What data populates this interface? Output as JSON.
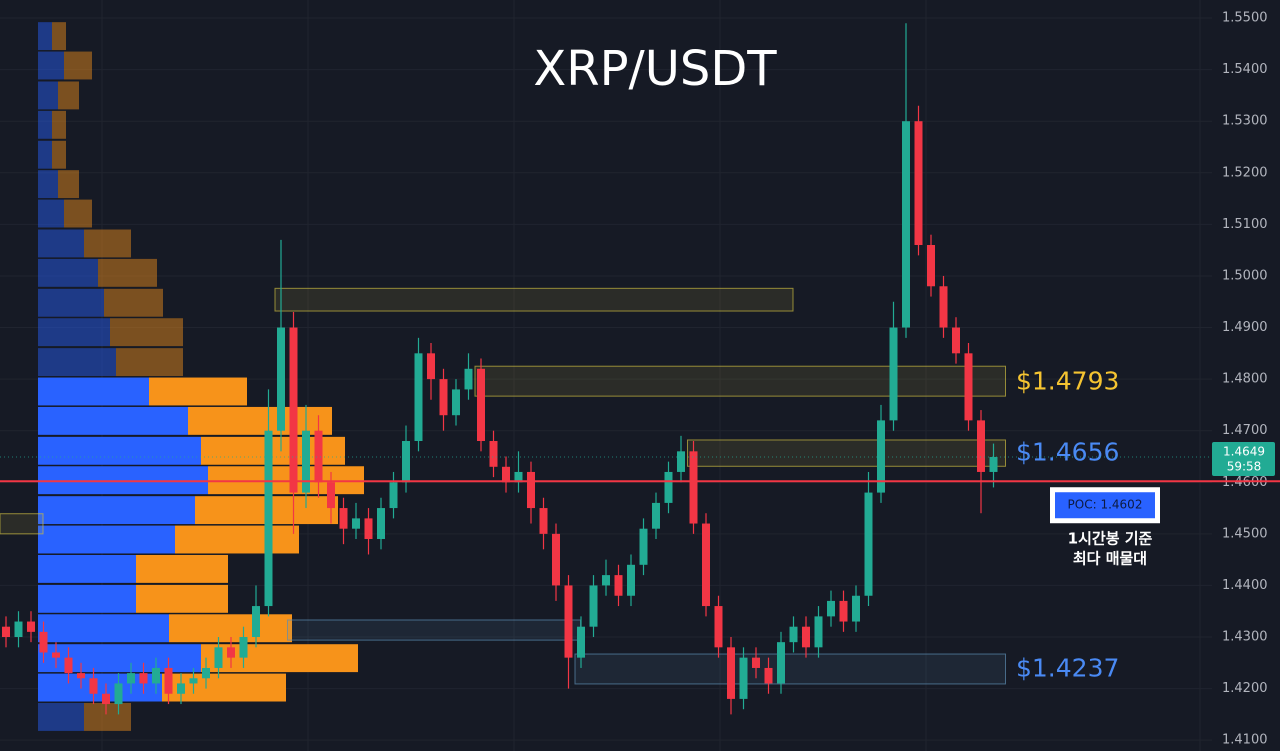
{
  "chart_data": {
    "type": "candlestick",
    "title": "XRP/USDT",
    "up_color": "#22ab94",
    "down_color": "#f23645",
    "grid": true,
    "ylim": [
      1.4079,
      1.5535
    ],
    "yticks": [
      {
        "value": 1.41,
        "label": "1.4100"
      },
      {
        "value": 1.42,
        "label": "1.4200"
      },
      {
        "value": 1.43,
        "label": "1.4300"
      },
      {
        "value": 1.44,
        "label": "1.4400"
      },
      {
        "value": 1.45,
        "label": "1.4500"
      },
      {
        "value": 1.46,
        "label": "1.4600"
      },
      {
        "value": 1.47,
        "label": "1.4700"
      },
      {
        "value": 1.48,
        "label": "1.4800"
      },
      {
        "value": 1.49,
        "label": "1.4900"
      },
      {
        "value": 1.5,
        "label": "1.5000"
      },
      {
        "value": 1.51,
        "label": "1.5100"
      },
      {
        "value": 1.52,
        "label": "1.5200"
      },
      {
        "value": 1.53,
        "label": "1.5300"
      },
      {
        "value": 1.54,
        "label": "1.5400"
      },
      {
        "value": 1.55,
        "label": "1.5500"
      }
    ],
    "open": [
      1.432,
      1.43,
      1.433,
      1.431,
      1.427,
      1.426,
      1.423,
      1.422,
      1.419,
      1.417,
      1.421,
      1.423,
      1.421,
      1.424,
      1.419,
      1.421,
      1.422,
      1.424,
      1.428,
      1.426,
      1.43,
      1.436,
      1.47,
      1.49,
      1.458,
      1.47,
      1.46,
      1.455,
      1.451,
      1.453,
      1.449,
      1.455,
      1.46,
      1.468,
      1.485,
      1.48,
      1.473,
      1.478,
      1.482,
      1.468,
      1.463,
      1.46,
      1.462,
      1.455,
      1.45,
      1.44,
      1.426,
      1.432,
      1.44,
      1.442,
      1.438,
      1.444,
      1.451,
      1.456,
      1.462,
      1.466,
      1.452,
      1.436,
      1.428,
      1.418,
      1.426,
      1.424,
      1.421,
      1.429,
      1.432,
      1.428,
      1.434,
      1.437,
      1.433,
      1.438,
      1.458,
      1.472,
      1.49,
      1.53,
      1.506,
      1.498,
      1.49,
      1.485,
      1.472,
      1.462
    ],
    "high": [
      1.434,
      1.435,
      1.435,
      1.433,
      1.429,
      1.428,
      1.425,
      1.424,
      1.421,
      1.423,
      1.425,
      1.425,
      1.426,
      1.426,
      1.423,
      1.424,
      1.426,
      1.43,
      1.43,
      1.432,
      1.44,
      1.478,
      1.507,
      1.493,
      1.475,
      1.473,
      1.462,
      1.457,
      1.456,
      1.455,
      1.457,
      1.462,
      1.471,
      1.488,
      1.487,
      1.482,
      1.48,
      1.485,
      1.484,
      1.47,
      1.465,
      1.466,
      1.464,
      1.457,
      1.452,
      1.442,
      1.434,
      1.442,
      1.445,
      1.444,
      1.446,
      1.453,
      1.458,
      1.464,
      1.469,
      1.468,
      1.454,
      1.438,
      1.43,
      1.428,
      1.428,
      1.426,
      1.431,
      1.434,
      1.434,
      1.436,
      1.439,
      1.439,
      1.44,
      1.462,
      1.475,
      1.495,
      1.549,
      1.533,
      1.508,
      1.5,
      1.492,
      1.487,
      1.474,
      1.4675
    ],
    "low": [
      1.428,
      1.428,
      1.429,
      1.425,
      1.424,
      1.421,
      1.42,
      1.417,
      1.415,
      1.415,
      1.419,
      1.419,
      1.419,
      1.417,
      1.417,
      1.419,
      1.42,
      1.422,
      1.424,
      1.424,
      1.428,
      1.434,
      1.466,
      1.45,
      1.455,
      1.457,
      1.452,
      1.448,
      1.449,
      1.446,
      1.447,
      1.453,
      1.458,
      1.466,
      1.476,
      1.47,
      1.471,
      1.476,
      1.466,
      1.461,
      1.458,
      1.458,
      1.452,
      1.447,
      1.437,
      1.42,
      1.424,
      1.43,
      1.438,
      1.436,
      1.436,
      1.442,
      1.449,
      1.454,
      1.46,
      1.45,
      1.434,
      1.426,
      1.415,
      1.416,
      1.422,
      1.419,
      1.419,
      1.427,
      1.426,
      1.426,
      1.432,
      1.431,
      1.431,
      1.436,
      1.456,
      1.47,
      1.488,
      1.504,
      1.496,
      1.488,
      1.483,
      1.47,
      1.454,
      1.459
    ],
    "close": [
      1.43,
      1.433,
      1.431,
      1.427,
      1.426,
      1.423,
      1.422,
      1.419,
      1.417,
      1.421,
      1.423,
      1.421,
      1.424,
      1.419,
      1.421,
      1.422,
      1.424,
      1.428,
      1.426,
      1.43,
      1.436,
      1.47,
      1.49,
      1.458,
      1.47,
      1.46,
      1.455,
      1.451,
      1.453,
      1.449,
      1.455,
      1.46,
      1.468,
      1.485,
      1.48,
      1.473,
      1.478,
      1.482,
      1.468,
      1.463,
      1.46,
      1.462,
      1.455,
      1.45,
      1.44,
      1.426,
      1.432,
      1.44,
      1.442,
      1.438,
      1.444,
      1.451,
      1.456,
      1.462,
      1.466,
      1.452,
      1.436,
      1.428,
      1.418,
      1.426,
      1.424,
      1.421,
      1.429,
      1.432,
      1.428,
      1.434,
      1.437,
      1.433,
      1.438,
      1.458,
      1.472,
      1.49,
      1.53,
      1.506,
      1.498,
      1.49,
      1.485,
      1.472,
      1.462,
      1.4649
    ],
    "volume_profile": {
      "buy_color": "#2962ff",
      "sell_color": "#f7931a",
      "prices": [
        1.5465,
        1.5408,
        1.535,
        1.5293,
        1.5235,
        1.5178,
        1.5121,
        1.5063,
        1.5006,
        1.4948,
        1.4891,
        1.4833,
        1.4776,
        1.4719,
        1.4661,
        1.4604,
        1.4546,
        1.4489,
        1.4432,
        1.4374,
        1.4317,
        1.4259,
        1.4202,
        1.4145
      ],
      "buy": [
        14,
        26,
        20,
        14,
        14,
        20,
        26,
        46,
        60,
        66,
        72,
        78,
        111,
        150,
        163,
        170,
        157,
        137,
        98,
        98,
        131,
        163,
        124,
        46
      ],
      "sell": [
        14,
        28,
        21,
        14,
        14,
        21,
        28,
        47,
        59,
        59,
        73,
        67,
        98,
        144,
        144,
        156,
        143,
        124,
        92,
        92,
        123,
        157,
        124,
        47
      ]
    },
    "zones": [
      {
        "low": 1.4932,
        "high": 1.4976,
        "start": 22,
        "end": 62,
        "color": "#c9b940"
      },
      {
        "low": 1.4767,
        "high": 1.4825,
        "start": 38,
        "end": 79,
        "color": "#c9b940",
        "level": {
          "value": 1.4793,
          "label": "$1.4793",
          "color": "#f5c431"
        }
      },
      {
        "low": 1.4631,
        "high": 1.4682,
        "start": 55,
        "end": 79,
        "color": "#c9b940",
        "level": {
          "value": 1.4656,
          "label": "$1.4656",
          "color": "#4a8af4"
        }
      },
      {
        "low": 1.4294,
        "high": 1.4333,
        "start": 23,
        "end": 45,
        "color": "#5b8cb0"
      },
      {
        "low": 1.4209,
        "high": 1.4267,
        "start": 46,
        "end": 79,
        "color": "#5b8cb0",
        "level": {
          "value": 1.4237,
          "label": "$1.4237",
          "color": "#4a8af4"
        }
      },
      {
        "low": 1.45,
        "high": 1.4539,
        "start": 0,
        "end": 2,
        "color": "#c9b940"
      }
    ],
    "poc": {
      "value": 1.4602,
      "label": "POC: 1.4602",
      "color": "#f23645"
    },
    "last_price": {
      "value": 1.4649,
      "label": "1.4649"
    },
    "countdown": "59:58",
    "annotation": [
      "1시간봉 기준",
      "최다 매물대"
    ]
  }
}
